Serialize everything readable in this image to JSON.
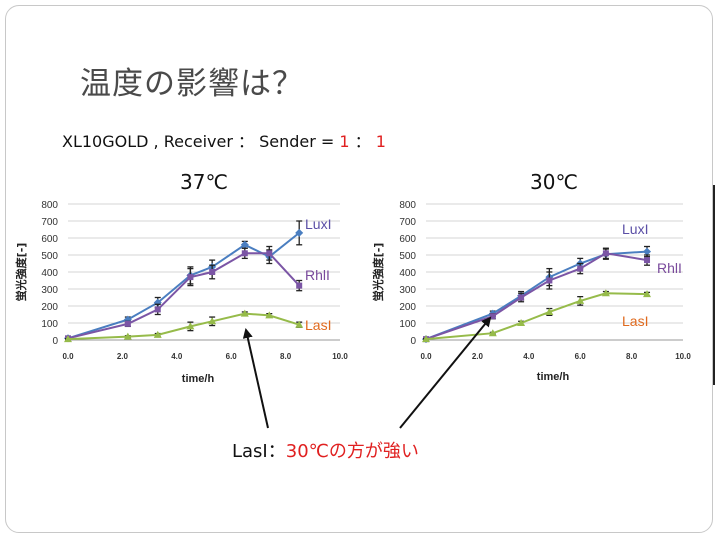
{
  "slide": {
    "title": "温度の影響は？",
    "subtitle": {
      "prefix": "XL10GOLD , Receiver  ：  Sender = ",
      "ratio_a": "1",
      "sep": "  ：  ",
      "ratio_b": "1"
    },
    "temp_left": "37℃",
    "temp_right": "30℃",
    "note": {
      "label": "LasI：",
      "emphasis": "30℃の方が強い"
    }
  },
  "colors": {
    "lux": "#4a7ec0",
    "rhl": "#7b55a5",
    "las": "#96bb4a",
    "label_lux": "#5b4fa6",
    "label_rhl": "#7a4a9c",
    "label_las": "#e06a1e",
    "accent_red": "#e02020"
  },
  "chart_data": [
    {
      "type": "line",
      "title": "",
      "xlabel": "time/h",
      "ylabel": "蛍光強度[-]",
      "xlim": [
        0,
        10
      ],
      "ylim": [
        0,
        800
      ],
      "xticks": [
        "0.0",
        "2.0",
        "4.0",
        "6.0",
        "8.0",
        "10.0"
      ],
      "yticks": [
        "0",
        "100",
        "200",
        "300",
        "400",
        "500",
        "600",
        "700",
        "800"
      ],
      "grid": true,
      "series": [
        {
          "name": "LuxI",
          "x": [
            0,
            2.2,
            3.3,
            4.5,
            5.3,
            6.5,
            7.4,
            8.5
          ],
          "y": [
            10,
            120,
            220,
            380,
            430,
            560,
            490,
            630
          ],
          "err": [
            5,
            15,
            30,
            50,
            40,
            20,
            40,
            70
          ]
        },
        {
          "name": "RhlI",
          "x": [
            0,
            2.2,
            3.3,
            4.5,
            5.3,
            6.5,
            7.4,
            8.5
          ],
          "y": [
            10,
            95,
            180,
            370,
            400,
            510,
            510,
            320
          ],
          "err": [
            5,
            15,
            30,
            50,
            40,
            30,
            40,
            30
          ]
        },
        {
          "name": "LasI",
          "x": [
            0,
            2.2,
            3.3,
            4.5,
            5.3,
            6.5,
            7.4,
            8.5
          ],
          "y": [
            5,
            20,
            30,
            80,
            110,
            155,
            145,
            90
          ],
          "err": [
            3,
            5,
            8,
            25,
            25,
            10,
            10,
            15
          ]
        }
      ]
    },
    {
      "type": "line",
      "title": "",
      "xlabel": "time/h",
      "ylabel": "蛍光強度[-]",
      "xlim": [
        0,
        10
      ],
      "ylim": [
        0,
        800
      ],
      "xticks": [
        "0.0",
        "2.0",
        "4.0",
        "6.0",
        "8.0",
        "10.0"
      ],
      "yticks": [
        "0",
        "100",
        "200",
        "300",
        "400",
        "500",
        "600",
        "700",
        "800"
      ],
      "grid": true,
      "series": [
        {
          "name": "LuxI",
          "x": [
            0,
            2.6,
            3.7,
            4.8,
            6.0,
            7.0,
            8.6
          ],
          "y": [
            5,
            155,
            260,
            370,
            450,
            505,
            520
          ],
          "err": [
            5,
            15,
            25,
            50,
            30,
            30,
            30
          ]
        },
        {
          "name": "RhlI",
          "x": [
            0,
            2.6,
            3.7,
            4.8,
            6.0,
            7.0,
            8.6
          ],
          "y": [
            5,
            140,
            250,
            350,
            420,
            510,
            470
          ],
          "err": [
            5,
            15,
            25,
            50,
            30,
            30,
            30
          ]
        },
        {
          "name": "LasI",
          "x": [
            0,
            2.6,
            3.7,
            4.8,
            6.0,
            7.0,
            8.6
          ],
          "y": [
            5,
            40,
            100,
            165,
            230,
            275,
            270
          ],
          "err": [
            3,
            5,
            10,
            20,
            25,
            10,
            10
          ]
        }
      ]
    }
  ]
}
